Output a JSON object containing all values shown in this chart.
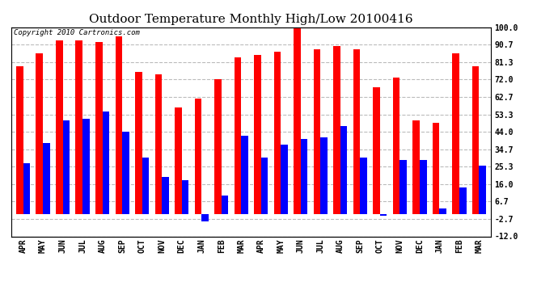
{
  "title": "Outdoor Temperature Monthly High/Low 20100416",
  "copyright": "Copyright 2010 Cartronics.com",
  "months": [
    "APR",
    "MAY",
    "JUN",
    "JUL",
    "AUG",
    "SEP",
    "OCT",
    "NOV",
    "DEC",
    "JAN",
    "FEB",
    "MAR",
    "APR",
    "MAY",
    "JUN",
    "JUL",
    "AUG",
    "SEP",
    "OCT",
    "NOV",
    "DEC",
    "JAN",
    "FEB",
    "MAR"
  ],
  "highs": [
    79,
    86,
    93,
    93,
    92,
    95,
    76,
    75,
    57,
    62,
    72,
    84,
    85,
    87,
    101,
    88,
    90,
    88,
    68,
    73,
    50,
    49,
    86,
    79
  ],
  "lows": [
    27,
    38,
    50,
    51,
    55,
    44,
    30,
    20,
    18,
    -4,
    10,
    42,
    30,
    37,
    40,
    41,
    47,
    30,
    -1,
    29,
    29,
    3,
    14,
    26
  ],
  "y_ticks": [
    100.0,
    90.7,
    81.3,
    72.0,
    62.7,
    53.3,
    44.0,
    34.7,
    25.3,
    16.0,
    6.7,
    -2.7,
    -12.0
  ],
  "bar_width": 0.35,
  "high_color": "#ff0000",
  "low_color": "#0000ff",
  "background_color": "#ffffff",
  "grid_color": "#bbbbbb",
  "title_fontsize": 11,
  "tick_fontsize": 7,
  "ymin": -12.0,
  "ymax": 100.0
}
